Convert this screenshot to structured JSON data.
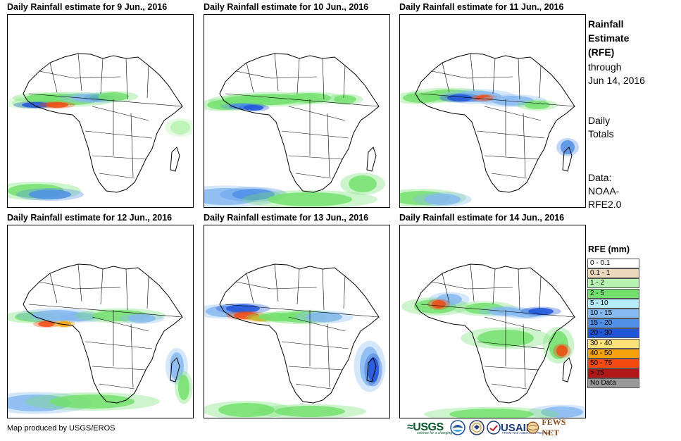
{
  "panels": [
    {
      "title": "Daily Rainfall estimate for 9 Jun., 2016"
    },
    {
      "title": "Daily Rainfall estimate for 10 Jun., 2016"
    },
    {
      "title": "Daily Rainfall estimate for 11 Jun., 2016"
    },
    {
      "title": "Daily Rainfall estimate for 12 Jun., 2016"
    },
    {
      "title": "Daily Rainfall estimate for 13 Jun., 2016"
    },
    {
      "title": "Daily Rainfall estimate for 14 Jun., 2016"
    }
  ],
  "side": {
    "title_line1": "Rainfall",
    "title_line2": "Estimate",
    "title_line3": "(RFE)",
    "through_line1": "through",
    "through_line2": "Jun 14, 2016",
    "totals_line1": "Daily",
    "totals_line2": "Totals",
    "data_line1": "Data:",
    "data_line2": "NOAA-",
    "data_line3": "RFE2.0"
  },
  "legend": {
    "title": "RFE (mm)",
    "items": [
      {
        "label": "0 - 0.1",
        "color": "#ffffff"
      },
      {
        "label": "0.1 - 1",
        "color": "#ecd9bd"
      },
      {
        "label": "1 - 2",
        "color": "#b9f3b3"
      },
      {
        "label": "2 - 5",
        "color": "#74e06f"
      },
      {
        "label": "5 - 10",
        "color": "#b5ecf7"
      },
      {
        "label": "10 - 15",
        "color": "#86b9f0"
      },
      {
        "label": "15 - 20",
        "color": "#4f8fe6"
      },
      {
        "label": "20 - 30",
        "color": "#2055d8"
      },
      {
        "label": "30 - 40",
        "color": "#fde27a"
      },
      {
        "label": "40 - 50",
        "color": "#f7a20c"
      },
      {
        "label": "50 - 75",
        "color": "#f24a10"
      },
      {
        "label": "> 75",
        "color": "#b01717"
      },
      {
        "label": "No Data",
        "color": "#9a9a9a"
      }
    ]
  },
  "credit": "Map produced by USGS/EROS",
  "logos": {
    "usgs_mark": "≈USGS",
    "usgs_tag": "science for a changing world",
    "usaid_mark": "USAID",
    "usaid_tag": "FROM THE AMERICAN PEOPLE",
    "fews_mark": "FEWS NET"
  }
}
